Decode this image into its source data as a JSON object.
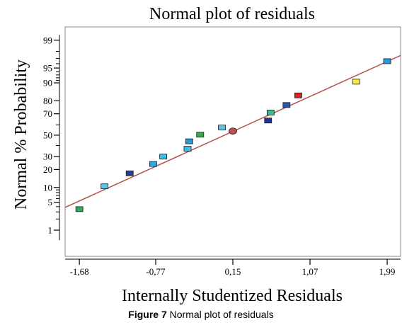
{
  "caption": {
    "label": "Figure 7",
    "text": " Normal plot of residuals"
  },
  "chart_data": {
    "type": "scatter",
    "title": "Normal plot of residuals",
    "xlabel": "Internally Studentized Residuals",
    "ylabel": "Normal % Probability",
    "xlim": [
      -1.85,
      2.15
    ],
    "x_ticks": [
      -1.68,
      -0.77,
      0.15,
      1.07,
      1.99
    ],
    "x_tick_labels": [
      "-1,68",
      "-0,77",
      "0,15",
      "1,07",
      "1,99"
    ],
    "y_scale": "normal-probability",
    "ylim": [
      0.15,
      99.6
    ],
    "y_ticks_labeled": [
      1,
      5,
      10,
      20,
      30,
      50,
      70,
      80,
      90,
      95,
      99
    ],
    "y_ticks_minor": [
      2,
      3,
      4,
      6,
      7,
      8,
      9,
      40,
      60,
      91,
      92,
      93,
      94,
      96,
      97,
      98
    ],
    "grid": false,
    "reference_line": {
      "color": "#b5524d",
      "from": [
        -1.85,
        3.84
      ],
      "to": [
        2.15,
        97.46
      ]
    },
    "points": [
      {
        "x": -1.68,
        "y": 3.5,
        "color": "#2fa862",
        "shape": "square"
      },
      {
        "x": -1.38,
        "y": 10.5,
        "color": "#58c4e6",
        "shape": "square"
      },
      {
        "x": -1.08,
        "y": 17.5,
        "color": "#283d9a",
        "shape": "square"
      },
      {
        "x": -0.8,
        "y": 24,
        "color": "#30a8e0",
        "shape": "square"
      },
      {
        "x": -0.68,
        "y": 30,
        "color": "#42bde8",
        "shape": "square"
      },
      {
        "x": -0.39,
        "y": 37,
        "color": "#40c0e4",
        "shape": "square"
      },
      {
        "x": -0.37,
        "y": 44,
        "color": "#2a9ad8",
        "shape": "square"
      },
      {
        "x": -0.24,
        "y": 50.5,
        "color": "#3ca84a",
        "shape": "square"
      },
      {
        "x": 0.02,
        "y": 57.5,
        "color": "#58c6e6",
        "shape": "square"
      },
      {
        "x": 0.15,
        "y": 54,
        "color": "#c0504d",
        "shape": "circle"
      },
      {
        "x": 0.57,
        "y": 64,
        "color": "#26358f",
        "shape": "square"
      },
      {
        "x": 0.6,
        "y": 71,
        "color": "#3eb898",
        "shape": "square"
      },
      {
        "x": 0.79,
        "y": 77,
        "color": "#2a56b4",
        "shape": "square"
      },
      {
        "x": 0.93,
        "y": 83.5,
        "color": "#e02020",
        "shape": "square"
      },
      {
        "x": 1.62,
        "y": 90.5,
        "color": "#f4ec3a",
        "shape": "square"
      },
      {
        "x": 1.99,
        "y": 96.5,
        "color": "#2c9ae0",
        "shape": "square"
      }
    ]
  }
}
